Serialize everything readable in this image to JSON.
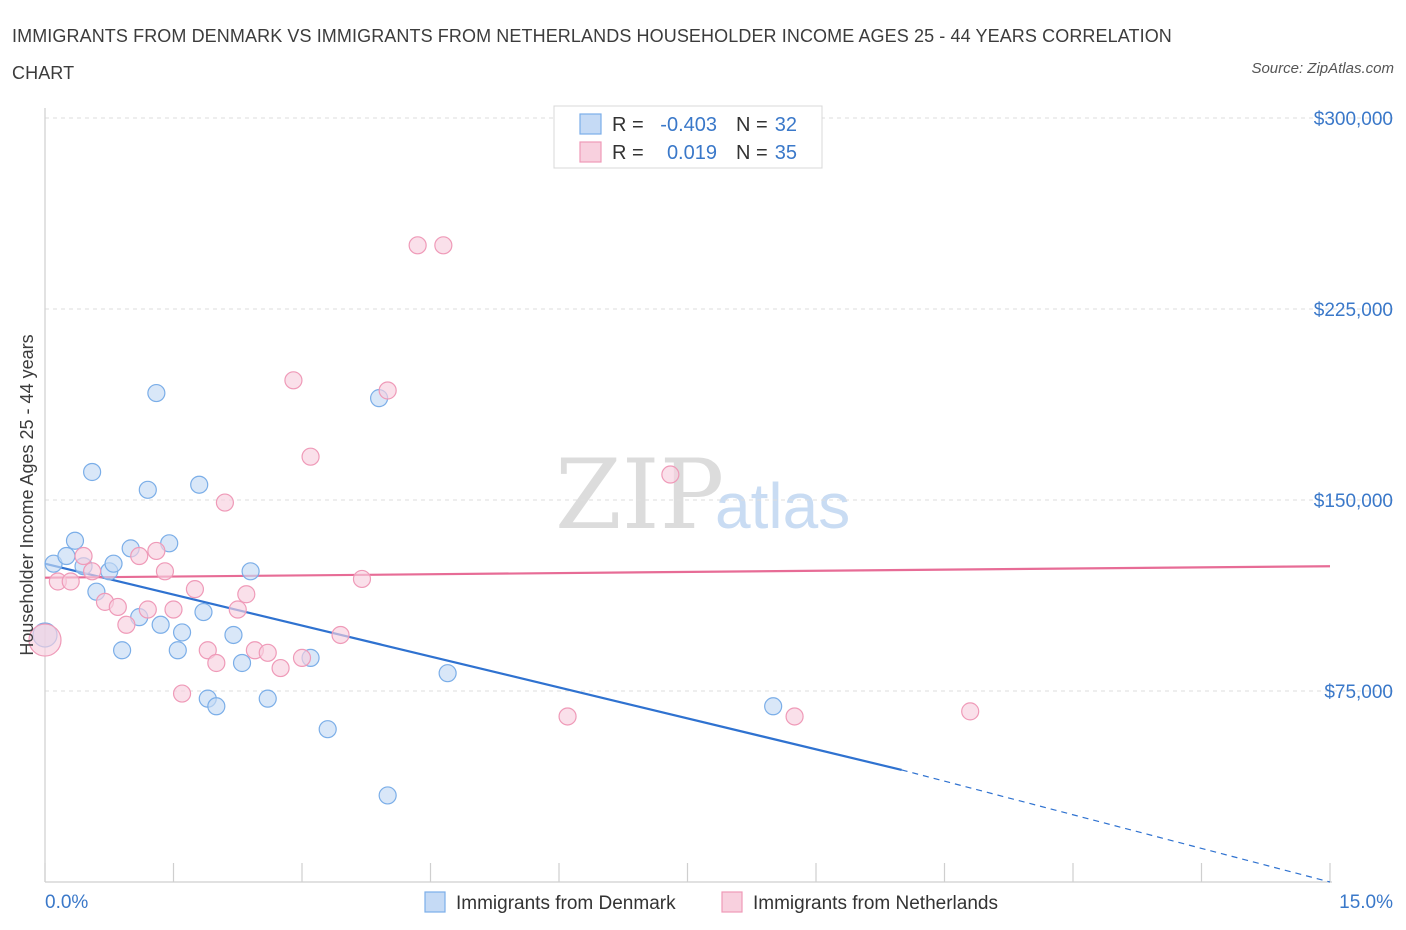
{
  "title": "IMMIGRANTS FROM DENMARK VS IMMIGRANTS FROM NETHERLANDS HOUSEHOLDER INCOME AGES 25 - 44 YEARS CORRELATION CHART",
  "source": "Source: ZipAtlas.com",
  "watermark": {
    "zip": "ZIP",
    "atlas": "atlas"
  },
  "legend": {
    "rows": [
      {
        "r_label": "R =",
        "r_value": "-0.403",
        "n_label": "N =",
        "n_value": "32"
      },
      {
        "r_label": "R =",
        "r_value": "0.019",
        "n_label": "N =",
        "n_value": "35"
      }
    ]
  },
  "chart_data": {
    "type": "scatter",
    "title": "IMMIGRANTS FROM DENMARK VS IMMIGRANTS FROM NETHERLANDS HOUSEHOLDER INCOME AGES 25 - 44 YEARS CORRELATION CHART",
    "xlabel": "",
    "ylabel": "Householder Income Ages 25 - 44 years",
    "xlim": [
      0,
      15
    ],
    "ylim": [
      0,
      300000
    ],
    "x_tick_labels": [
      "0.0%",
      "15.0%"
    ],
    "y_ticks": [
      75000,
      150000,
      225000,
      300000
    ],
    "y_tick_labels": [
      "$75,000",
      "$150,000",
      "$225,000",
      "$300,000"
    ],
    "grid": true,
    "legend_position": "top-center",
    "series": [
      {
        "name": "Immigrants from Denmark",
        "color": "#7baee8",
        "fill": "#c5daf5",
        "line_color": "#2f72d0",
        "trend": {
          "x0": 0.0,
          "y0": 125000,
          "x1": 10.0,
          "y1": 44000,
          "dashed_to_x": 15.0,
          "dashed_to_y": 0
        },
        "points": [
          [
            0.0,
            97000
          ],
          [
            0.1,
            125000
          ],
          [
            0.25,
            128000
          ],
          [
            0.35,
            134000
          ],
          [
            0.45,
            124000
          ],
          [
            0.55,
            161000
          ],
          [
            0.6,
            114000
          ],
          [
            0.75,
            122000
          ],
          [
            0.8,
            125000
          ],
          [
            0.9,
            91000
          ],
          [
            1.0,
            131000
          ],
          [
            1.1,
            104000
          ],
          [
            1.2,
            154000
          ],
          [
            1.3,
            192000
          ],
          [
            1.35,
            101000
          ],
          [
            1.45,
            133000
          ],
          [
            1.55,
            91000
          ],
          [
            1.6,
            98000
          ],
          [
            1.8,
            156000
          ],
          [
            1.85,
            106000
          ],
          [
            1.9,
            72000
          ],
          [
            2.0,
            69000
          ],
          [
            2.2,
            97000
          ],
          [
            2.3,
            86000
          ],
          [
            2.4,
            122000
          ],
          [
            2.6,
            72000
          ],
          [
            3.1,
            88000
          ],
          [
            3.3,
            60000
          ],
          [
            3.9,
            190000
          ],
          [
            4.0,
            34000
          ],
          [
            4.7,
            82000
          ],
          [
            8.5,
            69000
          ]
        ]
      },
      {
        "name": "Immigrants from Netherlands",
        "color": "#ef9ab8",
        "fill": "#f8d0de",
        "line_color": "#e76c96",
        "trend": {
          "x0": 0.0,
          "y0": 119500,
          "x1": 15.0,
          "y1": 124000
        },
        "points": [
          [
            0.0,
            95000
          ],
          [
            0.15,
            118000
          ],
          [
            0.3,
            118000
          ],
          [
            0.45,
            128000
          ],
          [
            0.55,
            122000
          ],
          [
            0.7,
            110000
          ],
          [
            0.85,
            108000
          ],
          [
            0.95,
            101000
          ],
          [
            1.1,
            128000
          ],
          [
            1.2,
            107000
          ],
          [
            1.3,
            130000
          ],
          [
            1.4,
            122000
          ],
          [
            1.5,
            107000
          ],
          [
            1.6,
            74000
          ],
          [
            1.75,
            115000
          ],
          [
            1.9,
            91000
          ],
          [
            2.0,
            86000
          ],
          [
            2.1,
            149000
          ],
          [
            2.25,
            107000
          ],
          [
            2.35,
            113000
          ],
          [
            2.45,
            91000
          ],
          [
            2.6,
            90000
          ],
          [
            2.75,
            84000
          ],
          [
            2.9,
            197000
          ],
          [
            3.0,
            88000
          ],
          [
            3.1,
            167000
          ],
          [
            3.45,
            97000
          ],
          [
            3.7,
            119000
          ],
          [
            4.0,
            193000
          ],
          [
            4.35,
            250000
          ],
          [
            4.65,
            250000
          ],
          [
            6.1,
            65000
          ],
          [
            7.3,
            160000
          ],
          [
            8.75,
            65000
          ],
          [
            10.8,
            67000
          ]
        ]
      }
    ]
  },
  "bottom_legend": [
    {
      "label": "Immigrants from Denmark"
    },
    {
      "label": "Immigrants from Netherlands"
    }
  ]
}
